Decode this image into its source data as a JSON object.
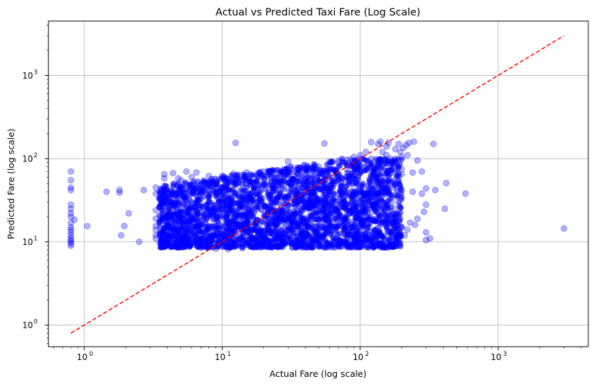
{
  "chart_data": {
    "type": "scatter",
    "title": "Actual vs Predicted Taxi Fare (Log Scale)",
    "xlabel": "Actual Fare (log scale)",
    "ylabel": "Predicted Fare (log scale)",
    "x_scale": "log",
    "y_scale": "log",
    "xlim": [
      0.55,
      4500
    ],
    "ylim": [
      0.55,
      4500
    ],
    "grid": true,
    "x_ticks": [
      1,
      10,
      100,
      1000
    ],
    "y_ticks": [
      1,
      10,
      100,
      1000
    ],
    "x_tick_labels": [
      {
        "base": "10",
        "exp": "0"
      },
      {
        "base": "10",
        "exp": "1"
      },
      {
        "base": "10",
        "exp": "2"
      },
      {
        "base": "10",
        "exp": "3"
      }
    ],
    "y_tick_labels": [
      {
        "base": "10",
        "exp": "0"
      },
      {
        "base": "10",
        "exp": "1"
      },
      {
        "base": "10",
        "exp": "2"
      },
      {
        "base": "10",
        "exp": "3"
      }
    ],
    "series": [
      {
        "marker": "circle",
        "color": "#0000ff",
        "alpha": 0.3,
        "points": [
          [
            0.8,
            70
          ],
          [
            0.8,
            55
          ],
          [
            0.8,
            45
          ],
          [
            0.8,
            42
          ],
          [
            0.8,
            28
          ],
          [
            0.8,
            25
          ],
          [
            0.8,
            22
          ],
          [
            0.8,
            20
          ],
          [
            0.8,
            17
          ],
          [
            0.8,
            15
          ],
          [
            0.8,
            14
          ],
          [
            0.8,
            13
          ],
          [
            0.8,
            12
          ],
          [
            0.8,
            11
          ],
          [
            0.8,
            10.5
          ],
          [
            0.8,
            10
          ],
          [
            0.8,
            9.5
          ],
          [
            0.8,
            9
          ],
          [
            0.85,
            18.5
          ],
          [
            1.05,
            15.5
          ],
          [
            1.45,
            40
          ],
          [
            1.8,
            42
          ],
          [
            1.8,
            39
          ],
          [
            1.85,
            12
          ],
          [
            1.95,
            15.5
          ],
          [
            2.1,
            22
          ],
          [
            2.5,
            10
          ],
          [
            2.7,
            42
          ],
          [
            3.3,
            45
          ],
          [
            3.3,
            38
          ],
          [
            3.3,
            24
          ],
          [
            3.3,
            19
          ],
          [
            3.3,
            15.5
          ],
          [
            3.3,
            14
          ],
          [
            3.3,
            12
          ],
          [
            3.3,
            11
          ],
          [
            3.8,
            65
          ],
          [
            3.8,
            58
          ],
          [
            3.8,
            47
          ],
          [
            3.8,
            42
          ],
          [
            3.8,
            36
          ],
          [
            3.8,
            31
          ],
          [
            3.8,
            27
          ],
          [
            3.8,
            22
          ],
          [
            3.8,
            18
          ],
          [
            3.8,
            14
          ],
          [
            3.8,
            11
          ],
          [
            4.4,
            67
          ],
          [
            4.8,
            58
          ],
          [
            5.5,
            70
          ],
          [
            6.5,
            68
          ],
          [
            12.5,
            155
          ],
          [
            30,
            92
          ],
          [
            55,
            152
          ],
          [
            140,
            160
          ],
          [
            160,
            155
          ],
          [
            190,
            150
          ],
          [
            170,
            90
          ],
          [
            200,
            75
          ],
          [
            200,
            65
          ],
          [
            190,
            55
          ],
          [
            170,
            45
          ],
          [
            200,
            42
          ],
          [
            240,
            40
          ],
          [
            280,
            38
          ],
          [
            150,
            22
          ],
          [
            180,
            20
          ],
          [
            130,
            24
          ],
          [
            260,
            95
          ],
          [
            240,
            68
          ],
          [
            280,
            70
          ],
          [
            300,
            44
          ],
          [
            300,
            28
          ],
          [
            250,
            16
          ],
          [
            220,
            14
          ],
          [
            300,
            13
          ],
          [
            320,
            11
          ],
          [
            300,
            10.5
          ],
          [
            340,
            150
          ],
          [
            350,
            42
          ],
          [
            420,
            51
          ],
          [
            410,
            25
          ],
          [
            580,
            38
          ],
          [
            3000,
            14.5
          ],
          [
            85,
            98
          ],
          [
            95,
            95
          ],
          [
            120,
            158
          ],
          [
            135,
            150
          ],
          [
            155,
            140
          ],
          [
            180,
            130
          ],
          [
            110,
            120
          ],
          [
            100,
            110
          ],
          [
            90,
            105
          ],
          [
            70,
            90
          ],
          [
            60,
            85
          ],
          [
            50,
            80
          ],
          [
            45,
            78
          ],
          [
            40,
            75
          ],
          [
            35,
            74
          ],
          [
            25,
            72
          ],
          [
            20,
            70
          ],
          [
            15,
            68
          ],
          [
            12,
            66
          ],
          [
            8,
            62
          ],
          [
            6,
            60
          ],
          [
            5,
            55
          ],
          [
            4.5,
            50
          ],
          [
            7,
            8.5
          ],
          [
            9,
            8.3
          ],
          [
            11,
            8.2
          ],
          [
            14,
            8.4
          ],
          [
            18,
            8.6
          ],
          [
            25,
            8.8
          ],
          [
            35,
            9
          ],
          [
            50,
            9.2
          ],
          [
            70,
            9.5
          ],
          [
            90,
            9.8
          ],
          [
            110,
            10
          ],
          [
            140,
            10.5
          ],
          [
            180,
            11
          ],
          [
            5,
            46
          ],
          [
            6,
            47
          ],
          [
            7,
            48
          ],
          [
            8,
            49
          ],
          [
            9,
            50
          ],
          [
            11,
            51
          ],
          [
            13,
            52
          ],
          [
            16,
            53
          ],
          [
            20,
            55
          ],
          [
            24,
            57
          ],
          [
            28,
            60
          ],
          [
            33,
            62
          ],
          [
            38,
            64
          ],
          [
            45,
            66
          ],
          [
            55,
            70
          ],
          [
            65,
            72
          ],
          [
            80,
            75
          ],
          [
            95,
            80
          ],
          [
            115,
            85
          ],
          [
            140,
            90
          ],
          [
            10,
            62
          ],
          [
            12,
            63
          ],
          [
            14,
            64
          ],
          [
            16,
            65
          ],
          [
            18,
            66
          ],
          [
            22,
            68
          ],
          [
            26,
            69
          ],
          [
            30,
            70
          ],
          [
            60,
            92
          ],
          [
            70,
            95
          ],
          [
            80,
            97
          ],
          [
            100,
            100
          ],
          [
            120,
            100
          ],
          [
            140,
            98
          ],
          [
            160,
            95
          ],
          [
            180,
            100
          ],
          [
            200,
            105
          ],
          [
            220,
            110
          ],
          [
            4,
            40
          ],
          [
            4,
            30
          ],
          [
            4,
            20
          ],
          [
            4,
            12
          ],
          [
            5,
            36
          ],
          [
            5,
            24
          ],
          [
            5,
            14
          ],
          [
            6,
            30
          ],
          [
            6,
            18
          ],
          [
            6,
            11
          ],
          [
            3.5,
            33
          ],
          [
            3.5,
            26
          ],
          [
            150,
            60
          ],
          [
            160,
            40
          ],
          [
            170,
            30
          ],
          [
            180,
            25
          ],
          [
            190,
            18
          ],
          [
            200,
            15
          ],
          [
            210,
            12
          ],
          [
            230,
            17
          ],
          [
            260,
            19
          ],
          [
            290,
            23
          ],
          [
            120,
            35
          ],
          [
            130,
            28
          ],
          [
            140,
            20
          ],
          [
            150,
            17
          ],
          [
            160,
            13
          ],
          [
            170,
            12.5
          ],
          [
            100,
            45
          ],
          [
            110,
            38
          ],
          [
            125,
            70
          ],
          [
            135,
            65
          ],
          [
            145,
            120
          ],
          [
            155,
            110
          ],
          [
            165,
            100
          ],
          [
            175,
            85
          ],
          [
            185,
            75
          ],
          [
            195,
            120
          ],
          [
            205,
            135
          ],
          [
            215,
            145
          ],
          [
            225,
            155
          ],
          [
            245,
            160
          ]
        ]
      },
      {
        "type": "dense_region",
        "color": "#0000ff",
        "alpha": 0.85,
        "note_values_only": "core point cloud",
        "x_range": [
          3.5,
          200
        ],
        "y_range": [
          8.5,
          100
        ]
      }
    ],
    "reference_line": {
      "style": "dashed",
      "color": "#ff0000",
      "from": [
        0.8,
        0.8
      ],
      "to": [
        3000,
        3000
      ]
    }
  }
}
